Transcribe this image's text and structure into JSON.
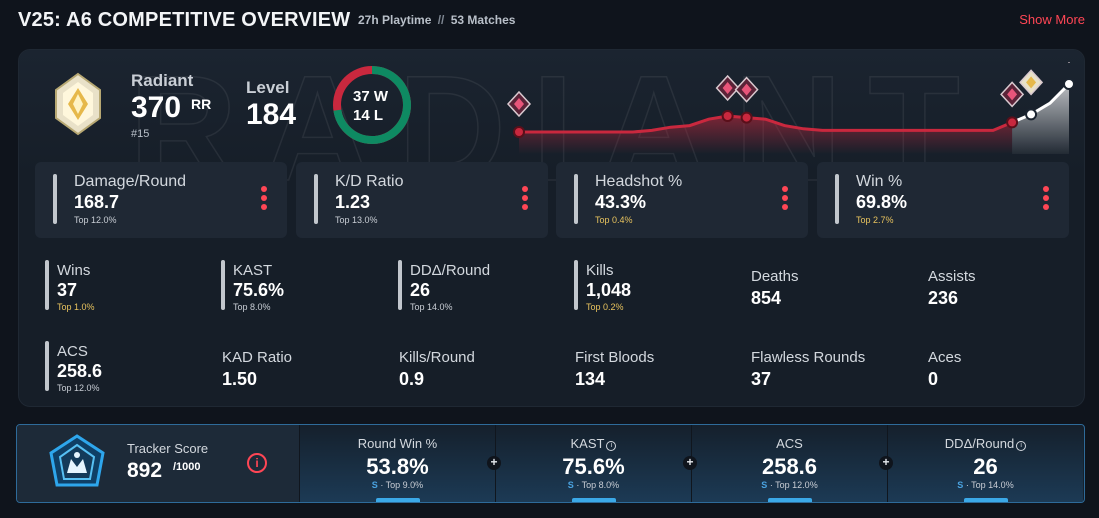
{
  "header": {
    "title": "V25: A6 COMPETITIVE OVERVIEW",
    "playtime": "27h Playtime",
    "separator": "//",
    "matches": "53 Matches",
    "show_more": "Show More"
  },
  "rank": {
    "name": "Radiant",
    "rr": "370",
    "rr_unit": "RR",
    "position": "#15",
    "icon": "radiant-rank-icon"
  },
  "level": {
    "label": "Level",
    "value": "184"
  },
  "record": {
    "wins": "37 W",
    "losses": "14 L",
    "win_fraction": 0.725
  },
  "trend": {
    "values": [
      0.3,
      0.3,
      0.3,
      0.3,
      0.3,
      0.3,
      0.3,
      0.31,
      0.33,
      0.34,
      0.38,
      0.4,
      0.39,
      0.38,
      0.34,
      0.32,
      0.31,
      0.31,
      0.31,
      0.31,
      0.31,
      0.31,
      0.31,
      0.31,
      0.31,
      0.31,
      0.36,
      0.41,
      0.48,
      0.6
    ],
    "line_color": "#c9283e",
    "highlight_color": "#ffffff"
  },
  "top_stats": [
    {
      "label": "Damage/Round",
      "value": "168.7",
      "pct": "Top 12.0%",
      "gold": false
    },
    {
      "label": "K/D Ratio",
      "value": "1.23",
      "pct": "Top 13.0%",
      "gold": false
    },
    {
      "label": "Headshot %",
      "value": "43.3%",
      "pct": "Top 0.4%",
      "gold": true
    },
    {
      "label": "Win %",
      "value": "69.8%",
      "pct": "Top 2.7%",
      "gold": true
    }
  ],
  "stats_row1": [
    {
      "label": "Wins",
      "value": "37",
      "pct": "Top 1.0%",
      "gold": true
    },
    {
      "label": "KAST",
      "value": "75.6%",
      "pct": "Top 8.0%",
      "gold": false
    },
    {
      "label": "DDΔ/Round",
      "value": "26",
      "pct": "Top 14.0%",
      "gold": false
    },
    {
      "label": "Kills",
      "value": "1,048",
      "pct": "Top 0.2%",
      "gold": true
    },
    {
      "label": "Deaths",
      "value": "854"
    },
    {
      "label": "Assists",
      "value": "236"
    }
  ],
  "stats_row2": [
    {
      "label": "ACS",
      "value": "258.6",
      "pct": "Top 12.0%",
      "gold": false
    },
    {
      "label": "KAD Ratio",
      "value": "1.50"
    },
    {
      "label": "Kills/Round",
      "value": "0.9"
    },
    {
      "label": "First Bloods",
      "value": "134"
    },
    {
      "label": "Flawless Rounds",
      "value": "37"
    },
    {
      "label": "Aces",
      "value": "0"
    }
  ],
  "tracker": {
    "label": "Tracker Score",
    "score": "892",
    "max": "/1000",
    "info": "i",
    "cells": [
      {
        "label": "Round Win %",
        "value": "53.8%",
        "grade": "S",
        "sub": "· Top 9.0%",
        "info": false
      },
      {
        "label": "KAST",
        "value": "75.6%",
        "grade": "S",
        "sub": "· Top 8.0%",
        "info": true
      },
      {
        "label": "ACS",
        "value": "258.6",
        "grade": "S",
        "sub": "· Top 12.0%",
        "info": false
      },
      {
        "label": "DDΔ/Round",
        "value": "26",
        "grade": "S",
        "sub": "· Top 14.0%",
        "info": true
      }
    ],
    "plus": "+"
  },
  "colors": {
    "accent": "#ff4655",
    "win": "#0e8a62",
    "loss": "#c9283e",
    "gold": "#e8c35e",
    "tracker_border": "#2e6b9a"
  }
}
